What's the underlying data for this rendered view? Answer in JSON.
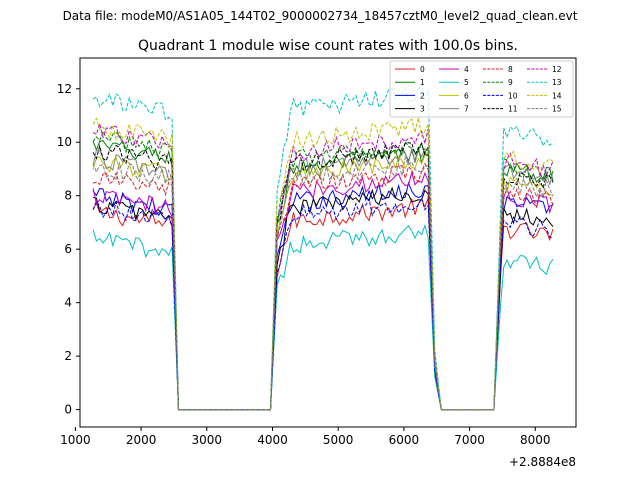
{
  "chart_data": {
    "type": "line",
    "suptitle": "Data file: modeM0/AS1A05_144T02_9000002734_18457cztM0_level2_quad_clean.evt",
    "title": "Quadrant 1 module wise count rates with 100.0s bins.",
    "xlabel": "",
    "ylabel": "",
    "x_offset_label": "+2.8884e8",
    "xlim": [
      1070,
      8620
    ],
    "ylim": [
      -0.65,
      13.15
    ],
    "x_ticks": [
      1000,
      2000,
      3000,
      4000,
      5000,
      6000,
      7000,
      8000
    ],
    "y_ticks": [
      0,
      2,
      4,
      6,
      8,
      10,
      12
    ],
    "x_tick_labels": [
      "1000",
      "2000",
      "3000",
      "4000",
      "5000",
      "6000",
      "7000",
      "8000"
    ],
    "y_tick_labels": [
      "0",
      "2",
      "4",
      "6",
      "8",
      "10",
      "12"
    ],
    "grid": false,
    "legend_position": "top-right",
    "legend_columns": 4,
    "segments": [
      {
        "start": 1270,
        "end": 2470,
        "decay_x": 2570,
        "zero_end": 3970,
        "zero_start": 2570
      },
      {
        "start": 4070,
        "end": 6370,
        "rise_x": 3970
      },
      {
        "start": 6470,
        "zero_start": 6570,
        "zero_end": 7370
      },
      {
        "start": 7470,
        "end": 8270,
        "rise_x": 7370
      }
    ],
    "series": [
      {
        "name": "0",
        "color": "#e41a1c",
        "dash": "solid",
        "level1": 7.4,
        "level2": 7.0,
        "level3": 6.8
      },
      {
        "name": "1",
        "color": "#008000",
        "dash": "solid",
        "level1": 9.9,
        "level2": 9.0,
        "level3": 9.0
      },
      {
        "name": "2",
        "color": "#0000ff",
        "dash": "solid",
        "level1": 8.0,
        "level2": 7.7,
        "level3": 7.8
      },
      {
        "name": "3",
        "color": "#000000",
        "dash": "solid",
        "level1": 7.7,
        "level2": 7.5,
        "level3": 7.4
      },
      {
        "name": "4",
        "color": "#bf00bf",
        "dash": "solid",
        "level1": 8.0,
        "level2": 8.1,
        "level3": 8.0
      },
      {
        "name": "5",
        "color": "#00bfbf",
        "dash": "solid",
        "level1": 6.4,
        "level2": 6.1,
        "level3": 5.6
      },
      {
        "name": "6",
        "color": "#bfbf00",
        "dash": "solid",
        "level1": 9.3,
        "level2": 8.7,
        "level3": 8.4
      },
      {
        "name": "7",
        "color": "#808080",
        "dash": "solid",
        "level1": 9.4,
        "level2": 8.9,
        "level3": 9.0
      },
      {
        "name": "8",
        "color": "#e41a1c",
        "dash": "dashed",
        "level1": 8.7,
        "level2": 8.3,
        "level3": 8.1
      },
      {
        "name": "9",
        "color": "#008000",
        "dash": "dashed",
        "level1": 10.2,
        "level2": 9.3,
        "level3": 9.1
      },
      {
        "name": "10",
        "color": "#0000ff",
        "dash": "dashed",
        "level1": 7.6,
        "level2": 7.2,
        "level3": 7.0
      },
      {
        "name": "11",
        "color": "#000000",
        "dash": "dashed",
        "level1": 9.7,
        "level2": 9.2,
        "level3": 8.8
      },
      {
        "name": "12",
        "color": "#bf00bf",
        "dash": "dashed",
        "level1": 10.4,
        "level2": 9.6,
        "level3": 9.3
      },
      {
        "name": "13",
        "color": "#00bfbf",
        "dash": "dashed",
        "level1": 11.6,
        "level2": 11.2,
        "level3": 10.4
      },
      {
        "name": "14",
        "color": "#bfbf00",
        "dash": "dashed",
        "level1": 10.6,
        "level2": 10.0,
        "level3": 9.4
      },
      {
        "name": "15",
        "color": "#808080",
        "dash": "dashed",
        "level1": 9.1,
        "level2": 8.6,
        "level3": 8.5
      }
    ]
  }
}
